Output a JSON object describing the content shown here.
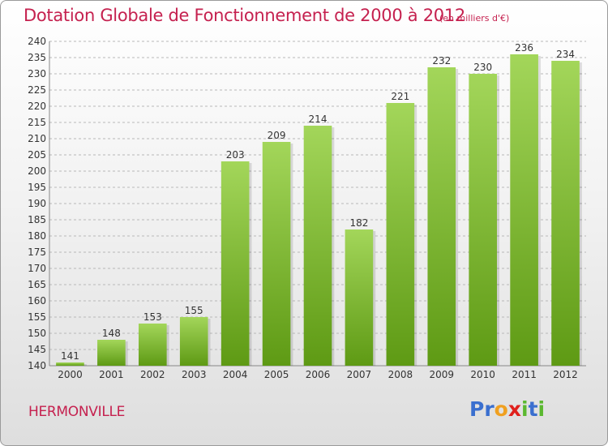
{
  "title": "Dotation Globale de Fonctionnement de 2000 à 2012",
  "subtitle": "(en milliers d'€)",
  "commune": "HERMONVILLE",
  "logo": {
    "letters": [
      "P",
      "r",
      "o",
      "x",
      "i",
      "t",
      "i"
    ],
    "colors": [
      "#3a6fcf",
      "#3a6fcf",
      "#f0a020",
      "#e0201c",
      "#5bb830",
      "#3a6fcf",
      "#5bb830"
    ]
  },
  "colors": {
    "bar_light": "#a3d65a",
    "bar_dark": "#5e9a14",
    "title": "#c5214f",
    "grid": "#b8b8b8"
  },
  "chart_data": {
    "type": "bar",
    "categories": [
      "2000",
      "2001",
      "2002",
      "2003",
      "2004",
      "2005",
      "2006",
      "2007",
      "2008",
      "2009",
      "2010",
      "2011",
      "2012"
    ],
    "values": [
      141,
      148,
      153,
      155,
      203,
      209,
      214,
      182,
      221,
      232,
      230,
      236,
      234
    ],
    "ylim": [
      140,
      240
    ],
    "ytick_step": 5,
    "grid": true,
    "xlabel": "",
    "ylabel": ""
  }
}
